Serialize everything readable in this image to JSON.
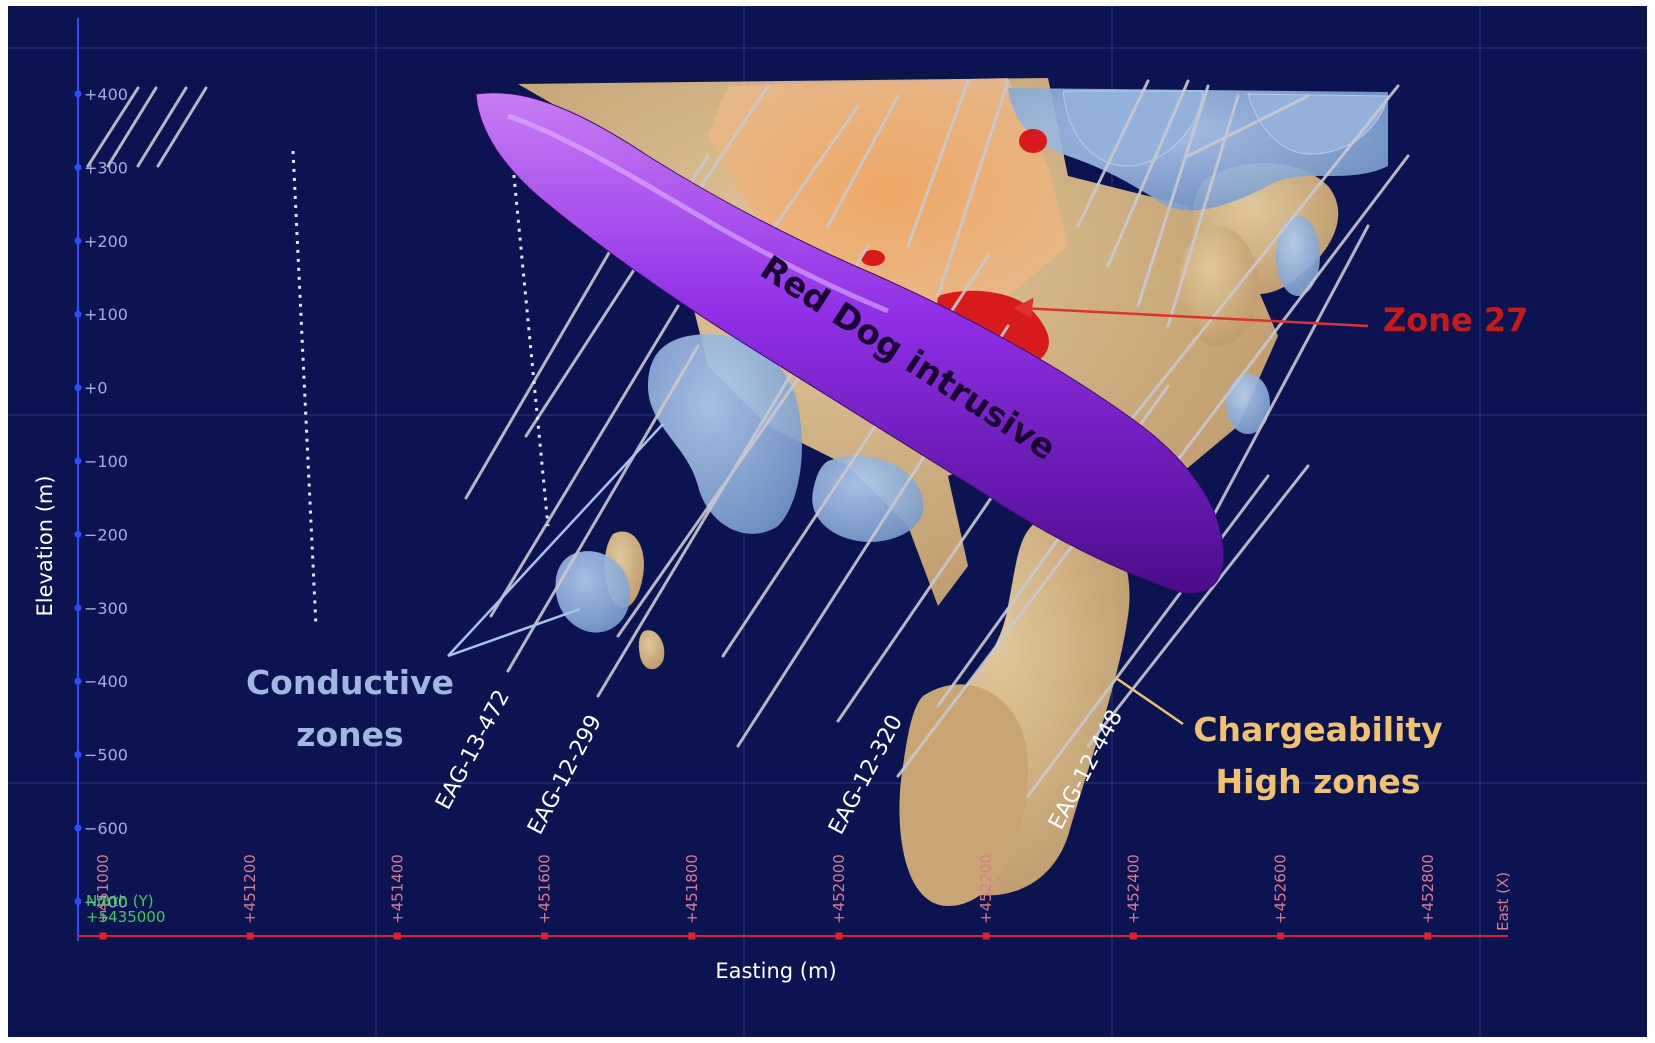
{
  "yaxis": {
    "title": "Elevation (m)",
    "ticks": [
      "+400",
      "+300",
      "+200",
      "+100",
      "+0",
      "−100",
      "−200",
      "−300",
      "−400",
      "−500",
      "−600",
      "−700"
    ]
  },
  "xaxis": {
    "title": "Easting (m)",
    "ticks": [
      "+451000",
      "+451200",
      "+451400",
      "+451600",
      "+451800",
      "+452000",
      "+452200",
      "+452400",
      "+452600",
      "+452800"
    ],
    "east_label": "East (X)"
  },
  "north": {
    "label": "North (Y)",
    "value": "+5435000"
  },
  "annotations": {
    "intrusive": "Red Dog intrusive",
    "zone27": "Zone 27",
    "conductive_line1": "Conductive",
    "conductive_line2": "zones",
    "charge_line1": "Chargeability",
    "charge_line2": "High zones"
  },
  "drillholes": [
    "EAG-13-472",
    "EAG-12-299",
    "EAG-12-320",
    "EAG-12-448"
  ],
  "colors": {
    "background": "#0b1350",
    "intrusive": "#8a2be2",
    "conductive": "#8fb3dc",
    "chargeability": "#e2b878",
    "zone27": "#c81818",
    "conductive_text": "#9fb8e0",
    "charge_text": "#f0c270"
  }
}
